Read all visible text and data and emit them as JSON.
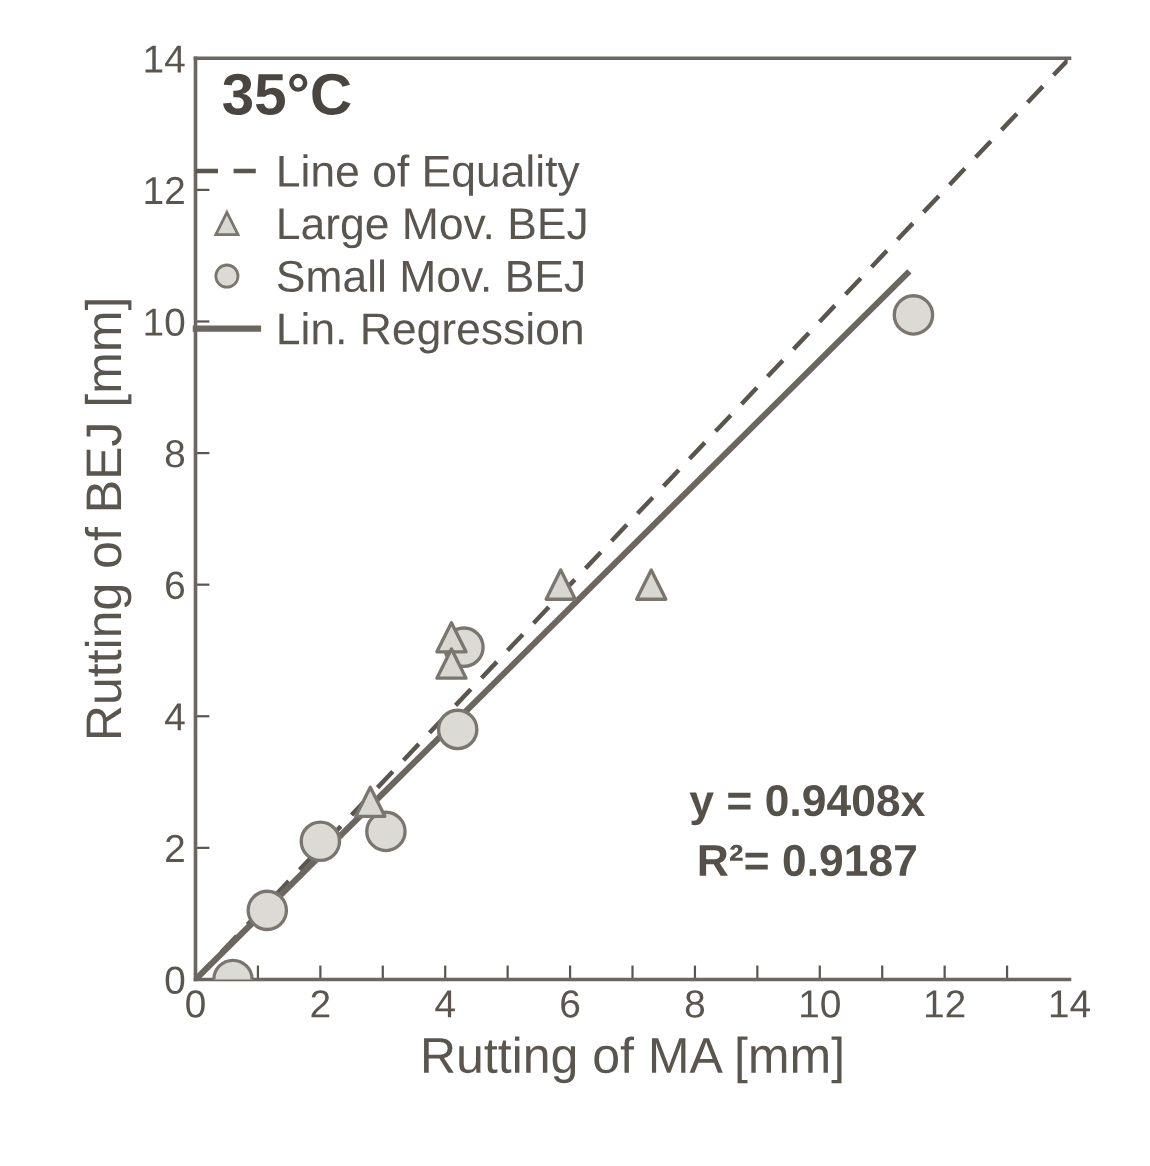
{
  "chart_data": {
    "type": "scatter",
    "title": "35°C",
    "xlabel": "Rutting of MA [mm]",
    "ylabel": "Rutting of BEJ [mm]",
    "xlim": [
      0,
      14
    ],
    "ylim": [
      0,
      14
    ],
    "xticks": [
      0,
      {
        "value": 1,
        "label": null
      },
      2,
      {
        "value": 3,
        "label": null
      },
      4,
      {
        "value": 5,
        "label": null
      },
      6,
      {
        "value": 7,
        "label": null
      },
      8,
      {
        "value": 9,
        "label": null
      },
      10,
      {
        "value": 11,
        "label": null
      },
      12,
      {
        "value": 13,
        "label": null
      },
      14
    ],
    "yticks": [
      0,
      2,
      4,
      6,
      8,
      10,
      12,
      14
    ],
    "grid": false,
    "legend": "top left",
    "series": [
      {
        "name": "Line of Equality",
        "type": "line",
        "line_style": "dashed",
        "marker": "none",
        "color": "#5a554f",
        "x": [
          0,
          14
        ],
        "values": [
          0,
          14
        ]
      },
      {
        "name": "Large Mov. BEJ",
        "marker": "triangle",
        "color": "#d9d7d2",
        "x": [
          2.8,
          4.1,
          4.1,
          5.85,
          7.3
        ],
        "values": [
          2.7,
          5.2,
          4.8,
          6.0,
          6.0
        ]
      },
      {
        "name": "Small Mov. BEJ",
        "marker": "circle",
        "color": "#dcdad5",
        "x": [
          0.6,
          1.15,
          2.0,
          3.05,
          4.2,
          4.3,
          11.5
        ],
        "values": [
          0.0,
          1.05,
          2.1,
          2.25,
          3.8,
          5.05,
          10.1
        ]
      },
      {
        "name": "Lin. Regression",
        "type": "line",
        "line_style": "solid",
        "marker": "none",
        "color": "#6b6660",
        "x": [
          0,
          11.4
        ],
        "values": [
          0,
          10.73
        ]
      }
    ],
    "annotations": [
      "y = 0.9408x",
      "R²= 0.9187"
    ]
  }
}
